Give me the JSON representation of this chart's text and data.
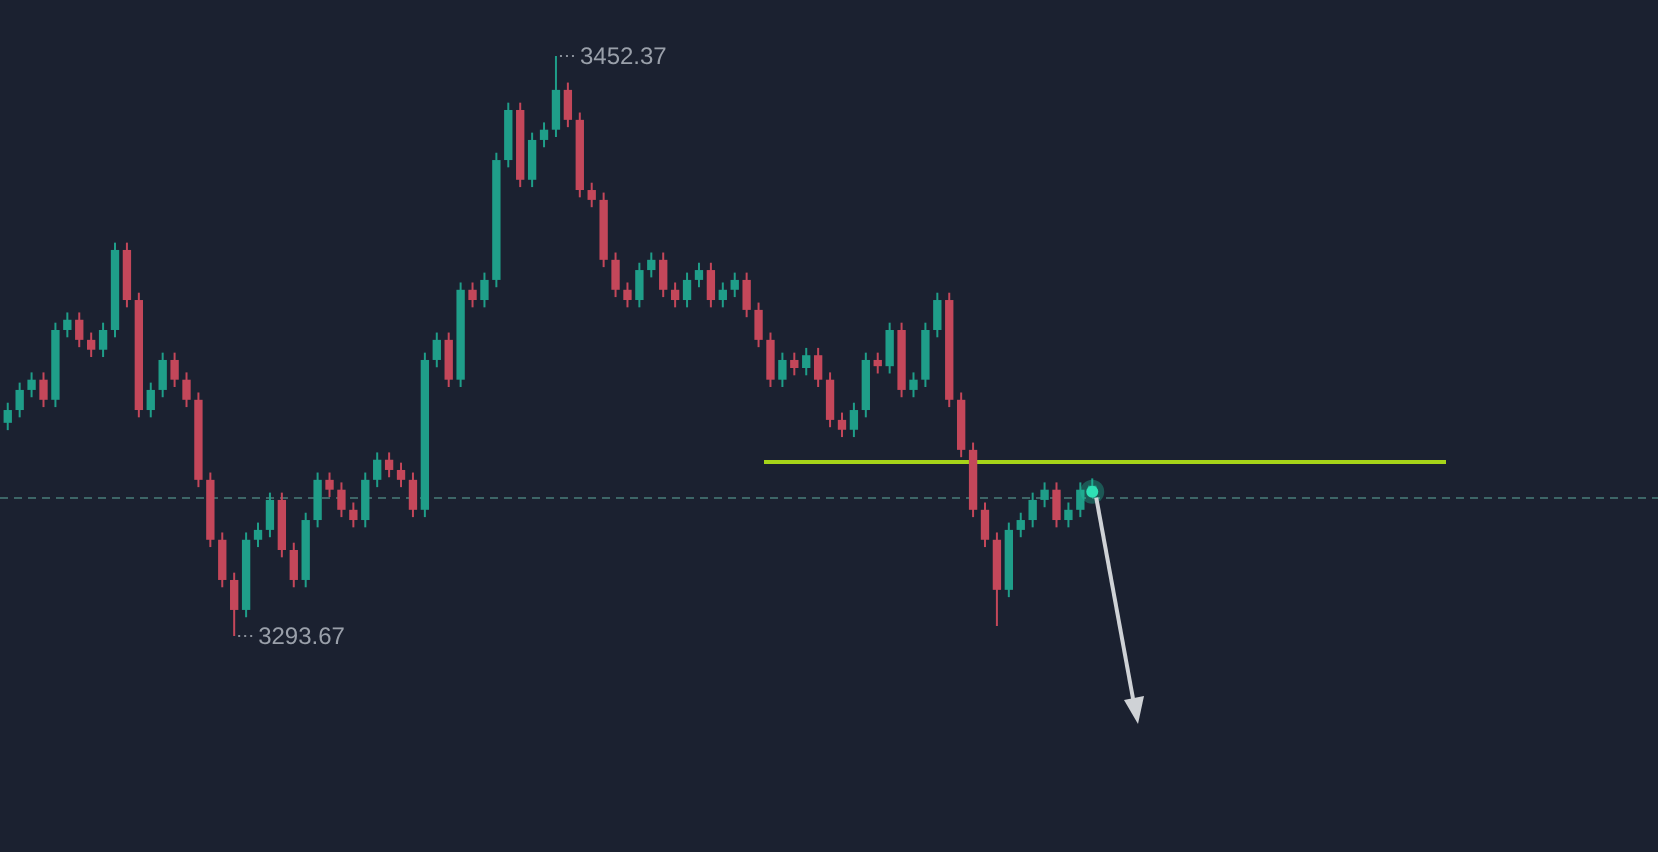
{
  "chart_data": {
    "type": "candlestick",
    "categories": [
      null,
      null,
      null,
      null,
      null,
      null,
      null,
      null,
      null,
      null,
      null,
      null,
      null,
      null,
      null,
      null,
      null,
      null,
      null,
      null,
      null,
      null,
      null,
      null,
      null,
      null,
      null,
      null,
      null,
      null,
      null,
      null,
      null,
      null,
      null,
      null,
      null,
      null,
      null,
      null,
      null,
      null,
      null,
      null,
      null,
      null,
      null,
      null,
      null,
      null,
      null,
      null,
      null,
      null,
      null,
      null,
      null,
      null,
      null,
      null,
      null,
      null,
      null,
      null,
      null,
      null,
      null,
      null,
      null,
      null,
      null,
      null,
      null,
      null,
      null,
      null,
      null,
      null,
      null,
      null,
      null,
      null,
      null,
      null,
      null,
      null,
      null,
      null,
      null,
      null,
      null,
      null
    ],
    "ohlc": [
      [
        3352.0,
        3357.5,
        3350.0,
        3355.5
      ],
      [
        3355.5,
        3363.0,
        3353.5,
        3361.0
      ],
      [
        3361.0,
        3365.8,
        3359.0,
        3363.8
      ],
      [
        3363.8,
        3365.8,
        3356.3,
        3358.3
      ],
      [
        3358.3,
        3379.4,
        3356.3,
        3377.4
      ],
      [
        3377.4,
        3382.2,
        3375.4,
        3380.2
      ],
      [
        3380.2,
        3382.2,
        3372.7,
        3374.7
      ],
      [
        3374.7,
        3376.7,
        3370.0,
        3372.0
      ],
      [
        3372.0,
        3379.4,
        3370.0,
        3377.4
      ],
      [
        3377.4,
        3401.3,
        3375.4,
        3399.3
      ],
      [
        3399.3,
        3401.3,
        3383.6,
        3385.6
      ],
      [
        3385.6,
        3387.6,
        3353.5,
        3355.5
      ],
      [
        3355.5,
        3363.0,
        3353.5,
        3361.0
      ],
      [
        3361.0,
        3371.2,
        3359.0,
        3369.2
      ],
      [
        3369.2,
        3371.2,
        3361.8,
        3363.8
      ],
      [
        3363.8,
        3365.8,
        3356.3,
        3358.3
      ],
      [
        3358.3,
        3360.3,
        3334.4,
        3336.4
      ],
      [
        3336.4,
        3338.4,
        3318.0,
        3320.0
      ],
      [
        3320.0,
        3322.0,
        3307.0,
        3309.0
      ],
      [
        3309.0,
        3311.0,
        3293.67,
        3300.8
      ],
      [
        3300.8,
        3322.0,
        3298.8,
        3320.0
      ],
      [
        3320.0,
        3324.7,
        3318.0,
        3322.7
      ],
      [
        3322.7,
        3332.9,
        3320.7,
        3330.9
      ],
      [
        3330.9,
        3332.9,
        3315.2,
        3317.2
      ],
      [
        3317.2,
        3319.2,
        3307.0,
        3309.0
      ],
      [
        3309.0,
        3327.4,
        3307.0,
        3325.4
      ],
      [
        3325.4,
        3338.4,
        3323.4,
        3336.4
      ],
      [
        3336.4,
        3338.4,
        3331.7,
        3333.7
      ],
      [
        3333.7,
        3335.7,
        3326.2,
        3328.2
      ],
      [
        3328.2,
        3330.2,
        3323.4,
        3325.4
      ],
      [
        3325.4,
        3338.4,
        3323.4,
        3336.4
      ],
      [
        3336.4,
        3343.9,
        3334.4,
        3341.9
      ],
      [
        3341.9,
        3343.9,
        3337.1,
        3339.1
      ],
      [
        3339.1,
        3341.1,
        3334.4,
        3336.4
      ],
      [
        3336.4,
        3338.4,
        3326.2,
        3328.2
      ],
      [
        3328.2,
        3371.2,
        3326.2,
        3369.2
      ],
      [
        3369.2,
        3376.7,
        3367.2,
        3374.7
      ],
      [
        3374.7,
        3376.7,
        3361.8,
        3363.8
      ],
      [
        3363.8,
        3390.4,
        3361.8,
        3388.4
      ],
      [
        3388.4,
        3390.4,
        3383.6,
        3385.6
      ],
      [
        3385.6,
        3393.1,
        3383.6,
        3391.1
      ],
      [
        3391.1,
        3425.9,
        3389.1,
        3423.9
      ],
      [
        3423.9,
        3439.6,
        3421.9,
        3437.6
      ],
      [
        3437.6,
        3439.6,
        3416.5,
        3418.5
      ],
      [
        3418.5,
        3431.4,
        3416.5,
        3429.4
      ],
      [
        3429.4,
        3434.2,
        3427.4,
        3432.2
      ],
      [
        3432.2,
        3452.37,
        3430.2,
        3443.1
      ],
      [
        3443.1,
        3445.1,
        3432.9,
        3434.9
      ],
      [
        3434.9,
        3436.9,
        3413.7,
        3415.7
      ],
      [
        3415.7,
        3417.7,
        3411.0,
        3413.0
      ],
      [
        3413.0,
        3415.0,
        3394.6,
        3396.6
      ],
      [
        3396.6,
        3398.6,
        3386.4,
        3388.4
      ],
      [
        3388.4,
        3390.4,
        3383.6,
        3385.6
      ],
      [
        3385.6,
        3395.8,
        3383.6,
        3393.8
      ],
      [
        3393.8,
        3398.6,
        3391.8,
        3396.6
      ],
      [
        3396.6,
        3398.6,
        3386.4,
        3388.4
      ],
      [
        3388.4,
        3390.4,
        3383.6,
        3385.6
      ],
      [
        3385.6,
        3393.1,
        3383.6,
        3391.1
      ],
      [
        3391.1,
        3395.8,
        3389.1,
        3393.8
      ],
      [
        3393.8,
        3395.8,
        3383.6,
        3385.6
      ],
      [
        3385.6,
        3390.4,
        3383.6,
        3388.4
      ],
      [
        3388.4,
        3393.1,
        3386.4,
        3391.1
      ],
      [
        3391.1,
        3393.1,
        3380.9,
        3382.9
      ],
      [
        3382.9,
        3384.9,
        3372.7,
        3374.7
      ],
      [
        3374.7,
        3376.7,
        3361.8,
        3363.8
      ],
      [
        3363.8,
        3371.2,
        3361.8,
        3369.2
      ],
      [
        3369.2,
        3371.2,
        3365.0,
        3367.0
      ],
      [
        3367.0,
        3372.5,
        3365.0,
        3370.5
      ],
      [
        3370.5,
        3372.5,
        3361.8,
        3363.8
      ],
      [
        3363.8,
        3365.8,
        3350.8,
        3352.8
      ],
      [
        3352.8,
        3354.8,
        3348.1,
        3350.1
      ],
      [
        3350.1,
        3357.5,
        3348.1,
        3355.5
      ],
      [
        3355.5,
        3371.2,
        3353.5,
        3369.2
      ],
      [
        3369.2,
        3371.2,
        3365.5,
        3367.5
      ],
      [
        3367.5,
        3379.4,
        3365.5,
        3377.4
      ],
      [
        3377.4,
        3379.4,
        3359.0,
        3361.0
      ],
      [
        3361.0,
        3365.8,
        3359.0,
        3363.8
      ],
      [
        3363.8,
        3379.4,
        3361.8,
        3377.4
      ],
      [
        3377.4,
        3387.6,
        3375.4,
        3385.6
      ],
      [
        3385.6,
        3387.6,
        3356.3,
        3358.3
      ],
      [
        3358.3,
        3360.3,
        3342.6,
        3344.6
      ],
      [
        3344.6,
        3346.6,
        3326.2,
        3328.2
      ],
      [
        3328.2,
        3330.2,
        3318.0,
        3320.0
      ],
      [
        3320.0,
        3322.0,
        3296.4,
        3306.3
      ],
      [
        3306.3,
        3324.7,
        3304.3,
        3322.7
      ],
      [
        3322.7,
        3327.4,
        3320.7,
        3325.4
      ],
      [
        3325.4,
        3332.9,
        3323.4,
        3330.9
      ],
      [
        3330.9,
        3335.7,
        3328.9,
        3333.7
      ],
      [
        3333.7,
        3335.7,
        3323.4,
        3325.4
      ],
      [
        3325.4,
        3330.2,
        3323.4,
        3328.2
      ],
      [
        3328.2,
        3335.7,
        3326.2,
        3333.7
      ],
      [
        3333.7,
        3336.8,
        3331.7,
        3334.8
      ]
    ],
    "ref_lines": [
      {
        "axis": "y",
        "value": 3341.3,
        "color": "#a6d419"
      },
      {
        "axis": "y",
        "value": 3331.4,
        "color": "#3d6667",
        "line_style": "dashed"
      }
    ],
    "annotations": [
      "3452.37",
      "3293.67"
    ]
  }
}
